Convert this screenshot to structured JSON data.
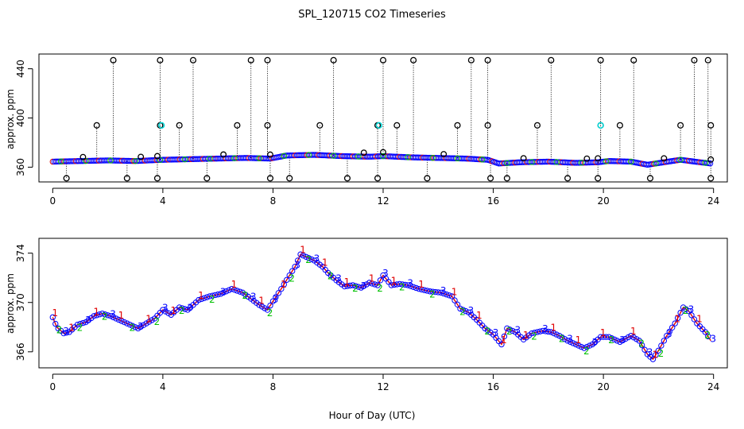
{
  "title": "SPL_120715  CO2 Timeseries",
  "xlabel": "Hour of Day (UTC)",
  "colors": {
    "axis": "#000000",
    "series_black": "#000000",
    "series_cyan": "#00d8d8",
    "series_blue": "#0000ff",
    "series_red": "#e00000",
    "series_green": "#00c000"
  },
  "chart_data": [
    {
      "type": "scatter",
      "panel": "top",
      "ylabel": "approx. ppm",
      "xlim": [
        -0.5,
        24.5
      ],
      "ylim": [
        348,
        452
      ],
      "xticks": [
        0,
        4,
        8,
        12,
        16,
        20,
        24
      ],
      "yticks": [
        360,
        400,
        440
      ],
      "spike_high": 447,
      "spike_mid": 394,
      "spike_low": 351,
      "baseline_points": [
        [
          0.0,
          364.5
        ],
        [
          1.0,
          365.0
        ],
        [
          2.0,
          365.5
        ],
        [
          3.0,
          365.0
        ],
        [
          4.0,
          366.0
        ],
        [
          5.0,
          366.5
        ],
        [
          6.0,
          367.0
        ],
        [
          7.0,
          367.5
        ],
        [
          7.9,
          367.0
        ],
        [
          8.5,
          369.5
        ],
        [
          9.5,
          370.0
        ],
        [
          10.5,
          369.0
        ],
        [
          11.5,
          368.5
        ],
        [
          12.0,
          369.0
        ],
        [
          13.0,
          368.0
        ],
        [
          14.0,
          367.5
        ],
        [
          15.0,
          367.0
        ],
        [
          15.8,
          366.0
        ],
        [
          16.2,
          363.0
        ],
        [
          17.0,
          364.0
        ],
        [
          18.0,
          364.5
        ],
        [
          19.0,
          363.5
        ],
        [
          19.8,
          364.0
        ],
        [
          20.2,
          365.0
        ],
        [
          21.0,
          364.5
        ],
        [
          21.6,
          362.0
        ],
        [
          22.2,
          364.0
        ],
        [
          22.8,
          366.0
        ],
        [
          23.5,
          364.0
        ],
        [
          23.9,
          363.0
        ]
      ],
      "spikes_high": [
        2.2,
        3.9,
        5.1,
        7.2,
        7.8,
        10.2,
        12.0,
        13.1,
        15.2,
        15.8,
        18.1,
        19.9,
        21.1,
        23.3,
        23.8
      ],
      "spikes_mid": [
        1.6,
        3.9,
        4.6,
        6.7,
        7.8,
        9.7,
        11.8,
        12.5,
        14.7,
        15.8,
        17.6,
        19.9,
        20.6,
        22.8,
        23.9
      ],
      "spikes_low": [
        0.5,
        2.7,
        3.8,
        5.6,
        7.9,
        8.6,
        10.7,
        11.8,
        13.6,
        15.9,
        16.5,
        18.7,
        19.8,
        21.7,
        23.9
      ],
      "mid_markers": [
        1.1,
        3.2,
        3.8,
        6.2,
        7.9,
        11.3,
        12.0,
        14.2,
        17.1,
        19.4,
        19.8,
        22.2,
        23.9
      ],
      "cyan_markers": [
        3.95,
        11.85,
        19.9
      ]
    },
    {
      "type": "scatter",
      "panel": "bottom",
      "ylabel": "approx. ppm",
      "xlim": [
        -0.5,
        24.5
      ],
      "ylim": [
        364.7,
        375.2
      ],
      "xticks": [
        0,
        4,
        8,
        12,
        16,
        20,
        24
      ],
      "yticks": [
        366,
        370,
        374
      ],
      "series_symbols": [
        "1",
        "2",
        "3"
      ],
      "points": [
        [
          0.0,
          368.8
        ],
        [
          0.15,
          368.0
        ],
        [
          0.4,
          367.5
        ],
        [
          0.6,
          367.6
        ],
        [
          0.9,
          368.2
        ],
        [
          1.2,
          368.4
        ],
        [
          1.5,
          368.9
        ],
        [
          1.8,
          369.1
        ],
        [
          2.1,
          368.9
        ],
        [
          2.4,
          368.6
        ],
        [
          2.8,
          368.2
        ],
        [
          3.1,
          367.9
        ],
        [
          3.4,
          368.3
        ],
        [
          3.7,
          368.7
        ],
        [
          4.0,
          369.4
        ],
        [
          4.3,
          369.0
        ],
        [
          4.6,
          369.6
        ],
        [
          4.9,
          369.4
        ],
        [
          5.3,
          370.2
        ],
        [
          5.7,
          370.5
        ],
        [
          6.1,
          370.7
        ],
        [
          6.5,
          371.1
        ],
        [
          6.9,
          370.8
        ],
        [
          7.2,
          370.3
        ],
        [
          7.5,
          369.8
        ],
        [
          7.8,
          369.4
        ],
        [
          8.0,
          370.1
        ],
        [
          8.3,
          371.1
        ],
        [
          8.6,
          372.2
        ],
        [
          8.8,
          372.9
        ],
        [
          9.0,
          373.9
        ],
        [
          9.2,
          373.7
        ],
        [
          9.5,
          373.4
        ],
        [
          9.8,
          372.9
        ],
        [
          10.0,
          372.4
        ],
        [
          10.3,
          371.8
        ],
        [
          10.6,
          371.3
        ],
        [
          10.9,
          371.4
        ],
        [
          11.2,
          371.2
        ],
        [
          11.5,
          371.6
        ],
        [
          11.8,
          371.4
        ],
        [
          12.0,
          372.2
        ],
        [
          12.3,
          371.4
        ],
        [
          12.6,
          371.5
        ],
        [
          12.9,
          371.4
        ],
        [
          13.3,
          371.1
        ],
        [
          13.7,
          370.9
        ],
        [
          14.1,
          370.8
        ],
        [
          14.5,
          370.5
        ],
        [
          14.8,
          369.5
        ],
        [
          15.1,
          369.2
        ],
        [
          15.4,
          368.6
        ],
        [
          15.7,
          367.9
        ],
        [
          16.0,
          367.4
        ],
        [
          16.3,
          366.6
        ],
        [
          16.5,
          367.9
        ],
        [
          16.8,
          367.6
        ],
        [
          17.1,
          367.0
        ],
        [
          17.4,
          367.5
        ],
        [
          17.8,
          367.7
        ],
        [
          18.1,
          367.6
        ],
        [
          18.4,
          367.3
        ],
        [
          18.7,
          366.9
        ],
        [
          19.0,
          366.6
        ],
        [
          19.3,
          366.3
        ],
        [
          19.6,
          366.6
        ],
        [
          19.9,
          367.2
        ],
        [
          20.2,
          367.2
        ],
        [
          20.6,
          366.8
        ],
        [
          21.0,
          367.3
        ],
        [
          21.3,
          366.9
        ],
        [
          21.6,
          365.8
        ],
        [
          21.8,
          365.4
        ],
        [
          22.0,
          366.1
        ],
        [
          22.3,
          367.3
        ],
        [
          22.6,
          368.3
        ],
        [
          22.9,
          369.6
        ],
        [
          23.1,
          369.3
        ],
        [
          23.4,
          368.3
        ],
        [
          23.7,
          367.6
        ],
        [
          23.9,
          366.9
        ]
      ]
    }
  ]
}
